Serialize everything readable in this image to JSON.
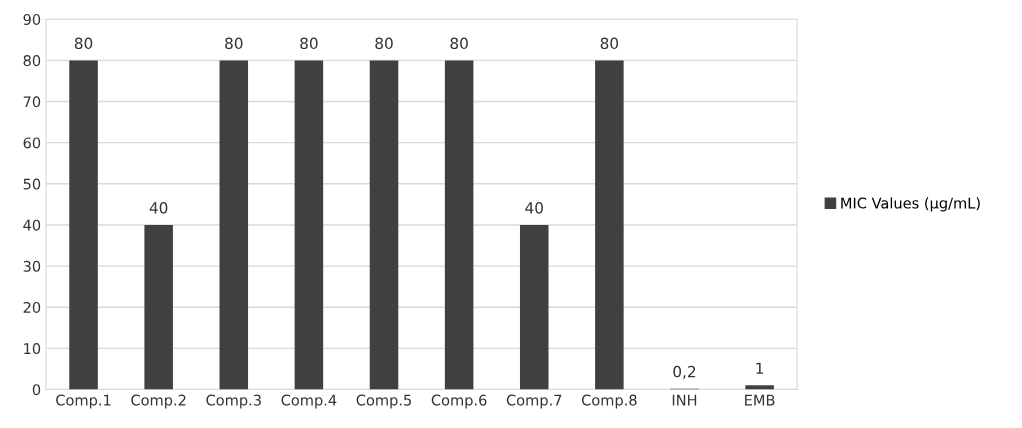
{
  "chart_data": {
    "type": "bar",
    "categories": [
      "Comp.1",
      "Comp.2",
      "Comp.3",
      "Comp.4",
      "Comp.5",
      "Comp.6",
      "Comp.7",
      "Comp.8",
      "INH",
      "EMB"
    ],
    "series": [
      {
        "name": "MIC Values (µg/mL)",
        "color": "#404040",
        "values": [
          80,
          40,
          80,
          80,
          80,
          80,
          40,
          80,
          0.2,
          1
        ],
        "value_labels": [
          "80",
          "40",
          "80",
          "80",
          "80",
          "80",
          "40",
          "80",
          "0,2",
          "1"
        ]
      }
    ],
    "ylim": [
      0,
      90
    ],
    "yticks": [
      0,
      10,
      20,
      30,
      40,
      50,
      60,
      70,
      80,
      90
    ],
    "grid": "y",
    "legend": "right"
  }
}
